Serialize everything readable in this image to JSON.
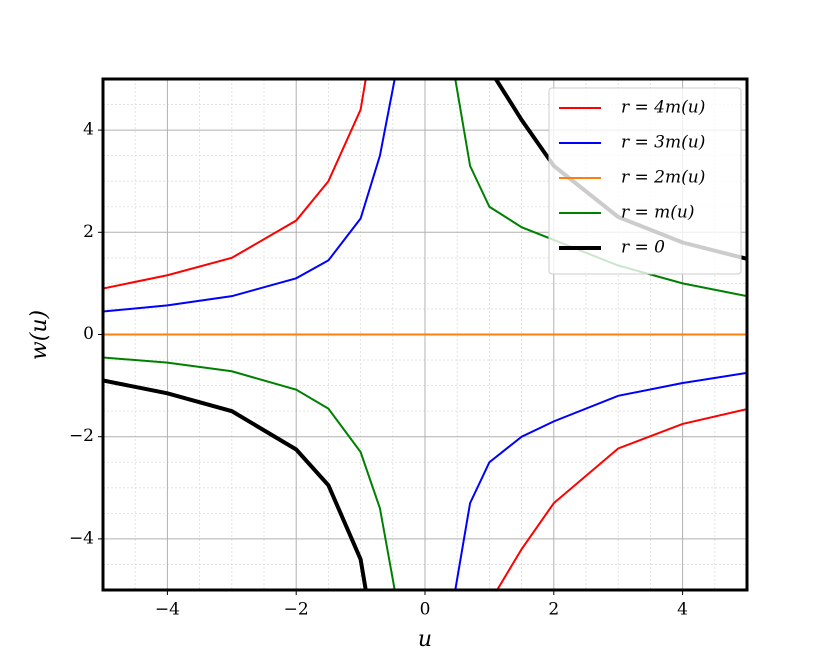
{
  "chart_data": {
    "type": "line",
    "x_label": "u",
    "y_label": "w(u)",
    "xlim": [
      -5,
      5
    ],
    "ylim": [
      -5,
      5
    ],
    "xticks": [
      {
        "value": -4,
        "label": "−4"
      },
      {
        "value": -2,
        "label": "−2"
      },
      0,
      2,
      4
    ],
    "yticks": [
      {
        "value": -4,
        "label": "−4"
      },
      {
        "value": -2,
        "label": "−2"
      },
      0,
      2,
      4
    ],
    "xminorticks": [
      -4.5,
      -3.5,
      -3,
      -2.5,
      -1.5,
      -1,
      -0.5,
      0.5,
      1,
      1.5,
      2.5,
      3,
      3.5,
      4.5
    ],
    "yminorticks": [
      -4.5,
      -3.5,
      -3,
      -2.5,
      -1.5,
      -1,
      -0.5,
      0.5,
      1,
      1.5,
      2.5,
      3,
      3.5,
      4.5
    ],
    "grid": true,
    "legend": "upper right",
    "series": [
      {
        "name": "r = 4m(u)",
        "color": "#ff0000",
        "width": 2,
        "x": [
          -5,
          -4,
          -3,
          -2,
          -1.5,
          -1,
          -0.92,
          null,
          1.12,
          1.5,
          2,
          3,
          4,
          5
        ],
        "values": [
          0.9,
          1.16,
          1.5,
          2.23,
          3.0,
          4.4,
          5,
          null,
          -5,
          -4.2,
          -3.3,
          -2.23,
          -1.75,
          -1.46
        ]
      },
      {
        "name": "r = 3m(u)",
        "color": "#0000ff",
        "width": 2,
        "x": [
          -5,
          -4,
          -3,
          -2,
          -1.5,
          -1,
          -0.7,
          -0.47,
          null,
          0.47,
          0.7,
          1,
          1.5,
          2,
          3,
          4,
          5
        ],
        "values": [
          0.45,
          0.57,
          0.75,
          1.1,
          1.45,
          2.27,
          3.5,
          5,
          null,
          -5,
          -3.3,
          -2.5,
          -2.0,
          -1.7,
          -1.2,
          -0.95,
          -0.75
        ]
      },
      {
        "name": "r = 2m(u)",
        "color": "#ff7f0e",
        "width": 2,
        "x": [
          -5,
          5
        ],
        "values": [
          0,
          0
        ]
      },
      {
        "name": "r = m(u)",
        "color": "#008000",
        "width": 2,
        "x": [
          -5,
          -4,
          -3,
          -2,
          -1.5,
          -1,
          -0.7,
          -0.47,
          null,
          0.47,
          0.7,
          1,
          1.5,
          2,
          3,
          4,
          5
        ],
        "values": [
          -0.45,
          -0.55,
          -0.72,
          -1.08,
          -1.45,
          -2.3,
          -3.4,
          -5,
          null,
          5,
          3.3,
          2.5,
          2.1,
          1.85,
          1.35,
          1.0,
          0.75
        ]
      },
      {
        "name": "r = 0",
        "color": "#000000",
        "width": 4,
        "x": [
          -5,
          -4,
          -3,
          -2,
          -1.5,
          -1,
          -0.92,
          null,
          1.1,
          1.5,
          2,
          3,
          4,
          5
        ],
        "values": [
          -0.9,
          -1.15,
          -1.5,
          -2.25,
          -2.95,
          -4.4,
          -5,
          null,
          5,
          4.2,
          3.3,
          2.3,
          1.8,
          1.48
        ]
      }
    ]
  }
}
